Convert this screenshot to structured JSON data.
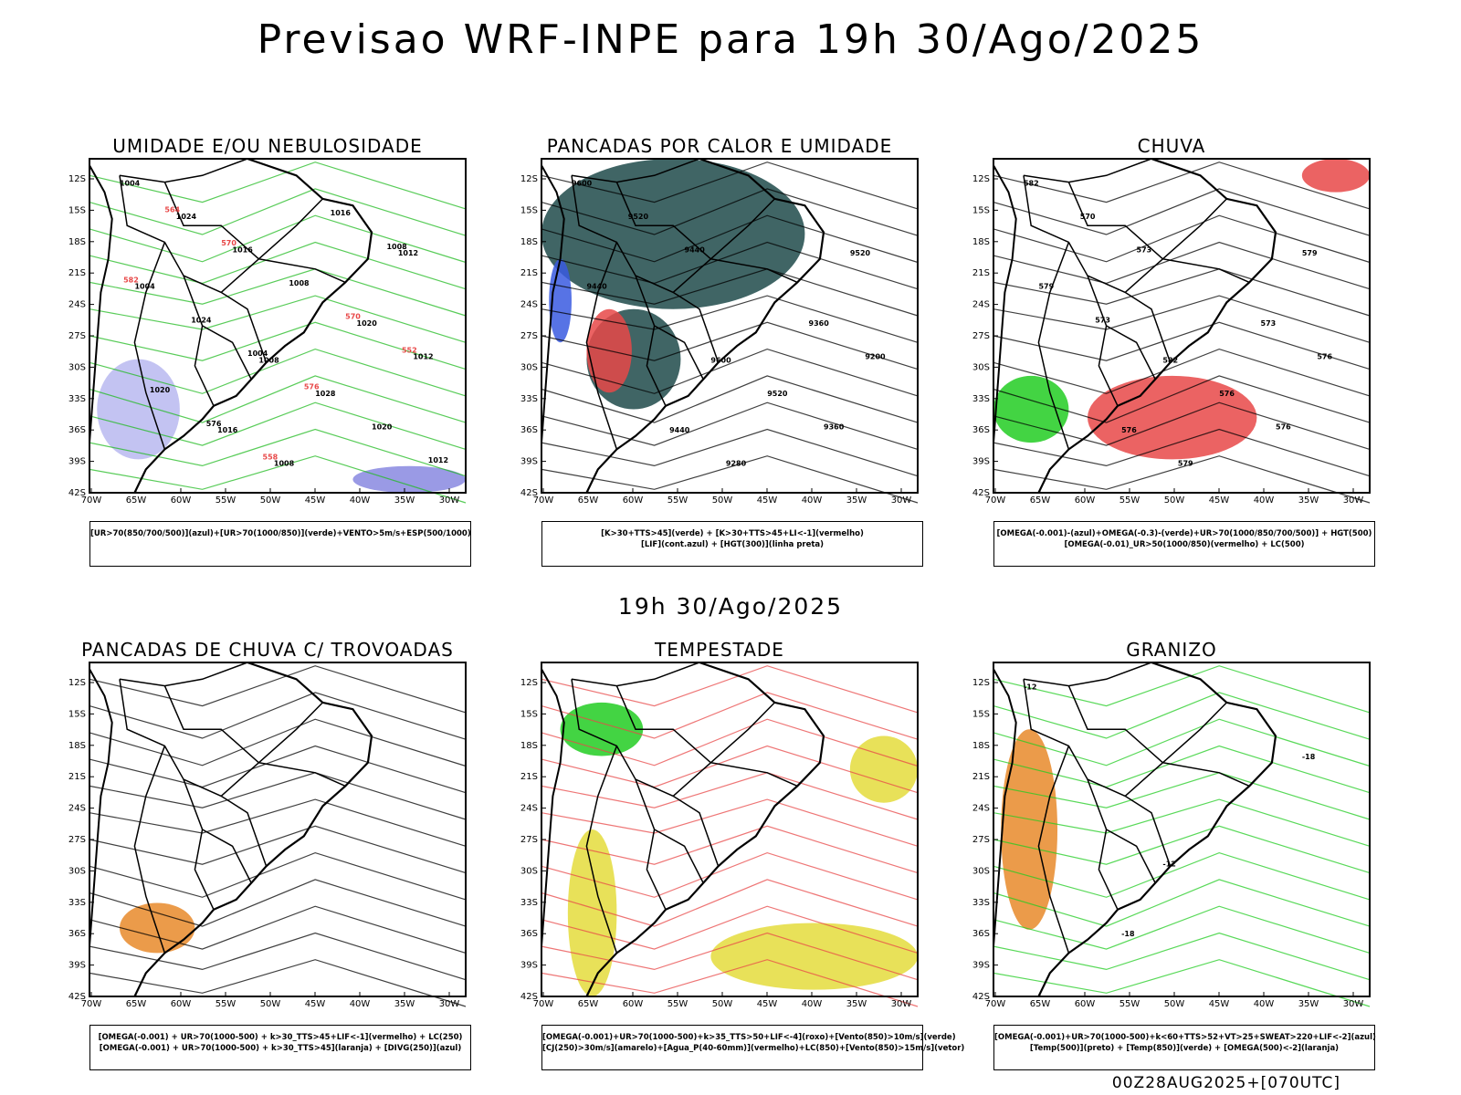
{
  "title": "Previsao WRF-INPE  para 19h 30/Ago/2025",
  "subtitle": "19h 30/Ago/2025",
  "footer": "00Z28AUG2025+[070UTC]",
  "lat_labels": [
    "12S",
    "15S",
    "18S",
    "21S",
    "24S",
    "27S",
    "30S",
    "33S",
    "36S",
    "39S",
    "42S"
  ],
  "lon_labels": [
    "70W",
    "65W",
    "60W",
    "55W",
    "50W",
    "45W",
    "40W",
    "35W",
    "30W"
  ],
  "panels": [
    {
      "title": "UMIDADE E/OU NEBULOSIDADE",
      "legend": [
        "[UR>70(850/700/500)](azul)+[UR>70(1000/850)](verde)+VENTO>5m/s+ESP(500/1000)"
      ],
      "contour_labels": [
        "1004",
        "1008",
        "1012",
        "1016",
        "1020",
        "1024",
        "1028",
        "1004",
        "1008",
        "1012",
        "1016",
        "1020",
        "1024",
        "1016",
        "1020",
        "1008",
        "1012",
        "1004",
        "1008",
        "576",
        "570",
        "564",
        "576",
        "582",
        "558",
        "552",
        "570"
      ]
    },
    {
      "title": "PANCADAS POR CALOR E UMIDADE",
      "legend": [
        "[K>30+TTS>45](verde) + [K>30+TTS>45+LI<-1](vermelho)",
        "[LIF](cont.azul) + [HGT(300)](linha preta)"
      ],
      "contour_labels": [
        "9600",
        "9600",
        "9520",
        "9440",
        "9360",
        "9520",
        "9520",
        "9440",
        "9280",
        "9200",
        "9440",
        "9360"
      ]
    },
    {
      "title": "CHUVA",
      "legend": [
        "[OMEGA(-0.001)-(azul)+OMEGA(-0.3)-(verde)+UR>70(1000/850/700/500)] + HGT(500)",
        "[OMEGA(-0.01)_UR>50(1000/850)(vermelho) + LC(500)"
      ],
      "contour_labels": [
        "582",
        "582",
        "579",
        "576",
        "573",
        "570",
        "576",
        "579",
        "579",
        "576",
        "573",
        "576",
        "573"
      ]
    },
    {
      "title": "PANCADAS DE CHUVA C/ TROVOADAS",
      "legend": [
        "[OMEGA(-0.001) + UR>70(1000-500) + k>30_TTS>45+LIF<-1](vermelho) + LC(250)",
        "[OMEGA(-0.001) + UR>70(1000-500) + k>30_TTS>45](laranja) + [DIVG(250)](azul)"
      ],
      "contour_labels": []
    },
    {
      "title": "TEMPESTADE",
      "legend": [
        "[OMEGA(-0.001)+UR>70(1000-500)+k>35_TTS>50+LIF<-4](roxo)+[Vento(850)>10m/s](verde)",
        "[CJ(250)>30m/s](amarelo)+[Agua_P(40-60mm)](vermelho)+LC(850)+[Vento(850)>15m/s](vetor)"
      ],
      "contour_labels": []
    },
    {
      "title": "GRANIZO",
      "legend": [
        "[OMEGA(-0.001)+UR>70(1000-500)+k<60+TTS>52+VT>25+SWEAT>220+LIF<-2](azul)",
        "[Temp(500)](preto) + [Temp(850)](verde) + [OMEGA(500)<-2](laranja)"
      ],
      "contour_labels": [
        "-12",
        "-12",
        "-18",
        "-18"
      ]
    }
  ]
}
